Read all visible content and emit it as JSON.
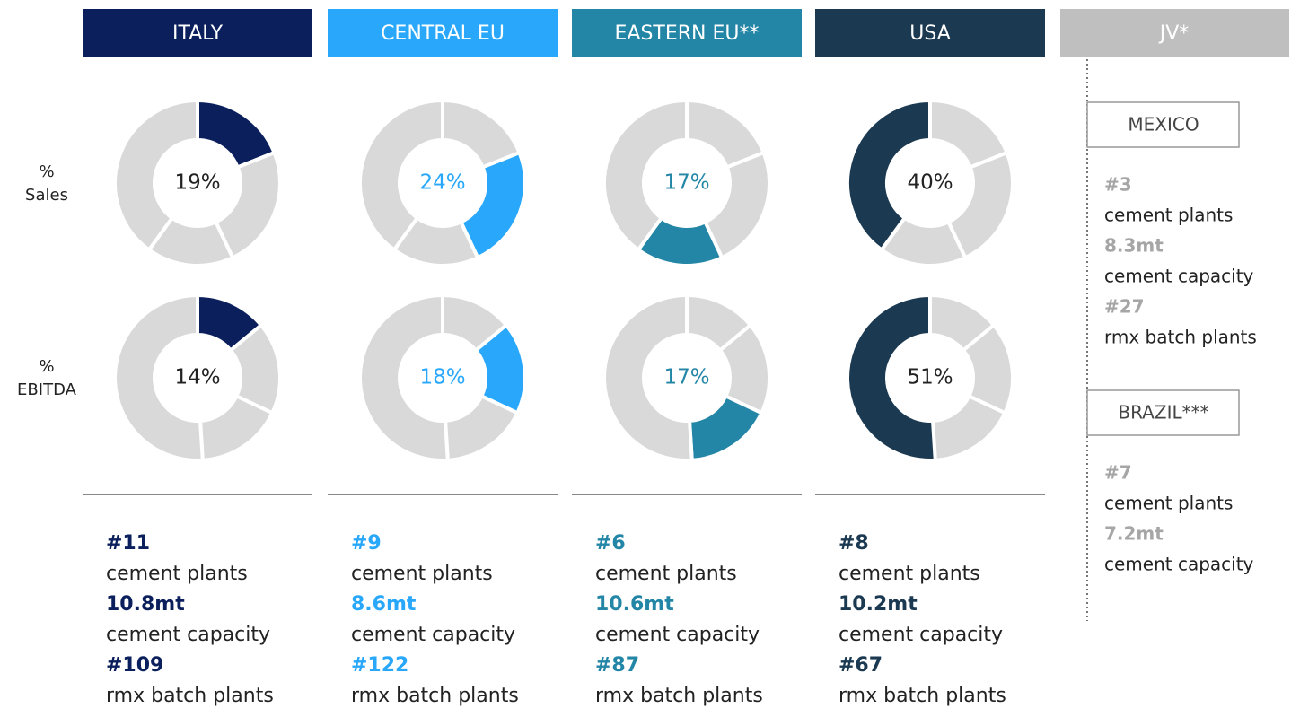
{
  "chart_data": [
    {
      "type": "donut",
      "label": "% Sales",
      "categories": [
        "ITALY",
        "CENTRAL EU",
        "EASTERN EU**",
        "USA"
      ],
      "values": [
        19,
        24,
        17,
        40
      ],
      "value_labels": [
        "19%",
        "24%",
        "17%",
        "40%"
      ],
      "colors": [
        "#0a1f5c",
        "#29a8fb",
        "#2386a6",
        "#1b3a52"
      ],
      "other_color": "#d9d9d9"
    },
    {
      "type": "donut",
      "label": "% EBITDA",
      "categories": [
        "ITALY",
        "CENTRAL EU",
        "EASTERN EU**",
        "USA"
      ],
      "values": [
        14,
        18,
        17,
        51
      ],
      "value_labels": [
        "14%",
        "18%",
        "17%",
        "51%"
      ],
      "colors": [
        "#0a1f5c",
        "#29a8fb",
        "#2386a6",
        "#1b3a52"
      ],
      "other_color": "#d9d9d9"
    }
  ],
  "regions": [
    {
      "stats": [
        {
          "number": "#11",
          "text": "cement plants"
        },
        {
          "number": "10.8mt",
          "text": "cement capacity"
        },
        {
          "number": "#109",
          "text": "rmx batch plants"
        }
      ]
    },
    {
      "stats": [
        {
          "number": "#9",
          "text": "cement plants"
        },
        {
          "number": "8.6mt",
          "text": "cement capacity"
        },
        {
          "number": "#122",
          "text": "rmx batch plants"
        }
      ]
    },
    {
      "stats": [
        {
          "number": "#6",
          "text": "cement plants"
        },
        {
          "number": "10.6mt",
          "text": "cement capacity"
        },
        {
          "number": "#87",
          "text": "rmx batch plants"
        }
      ]
    },
    {
      "stats": [
        {
          "number": "#8",
          "text": "cement plants"
        },
        {
          "number": "10.2mt",
          "text": "cement capacity"
        },
        {
          "number": "#67",
          "text": "rmx batch plants"
        }
      ]
    }
  ],
  "jv": {
    "title": "JV*",
    "countries": [
      {
        "name": "MEXICO",
        "stats": [
          {
            "number": "#3",
            "text": "cement plants"
          },
          {
            "number": "8.3mt",
            "text": "cement capacity"
          },
          {
            "number": "#27",
            "text": "rmx batch plants"
          }
        ]
      },
      {
        "name": "BRAZIL***",
        "stats": [
          {
            "number": "#7",
            "text": "cement plants"
          },
          {
            "number": "7.2mt",
            "text": "cement capacity"
          }
        ]
      }
    ]
  }
}
